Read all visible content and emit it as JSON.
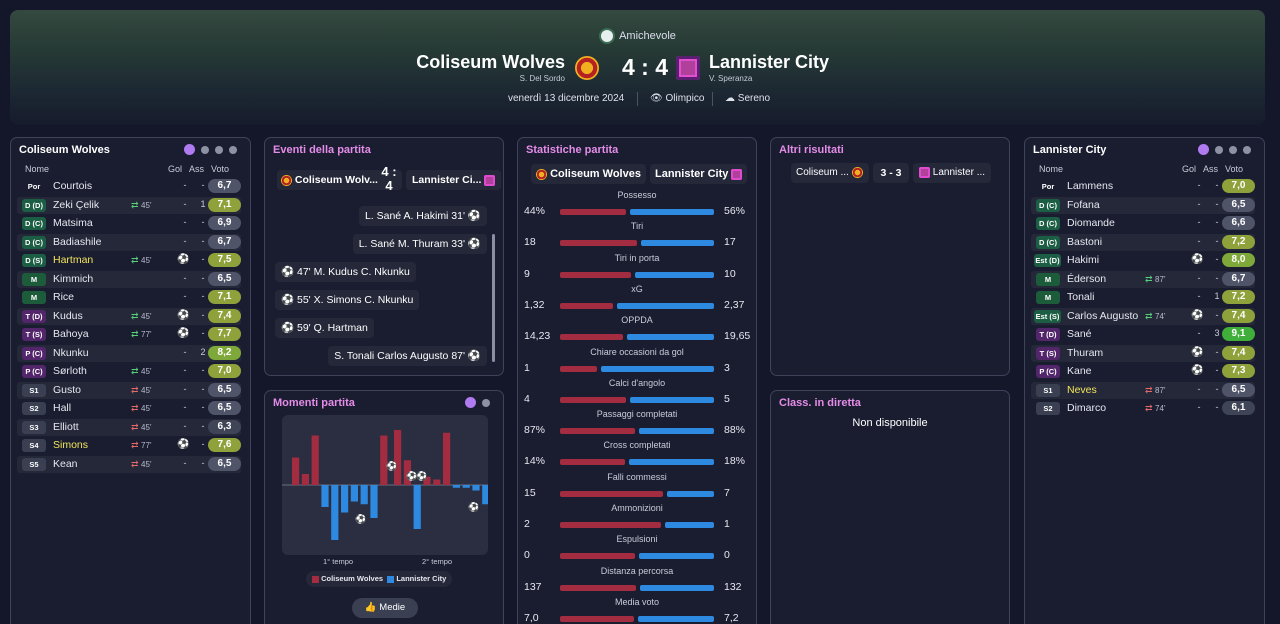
{
  "header": {
    "competition": "Amichevole",
    "home": {
      "name": "Coliseum Wolves",
      "coach": "S. Del Sordo"
    },
    "away": {
      "name": "Lannister City",
      "coach": "V. Speranza"
    },
    "score": "4 : 4",
    "date": "venerdì 13 dicembre 2024",
    "stadium": "Olimpico",
    "weather": "Sereno"
  },
  "colors": {
    "home": "#a32c40",
    "away": "#2e8ae0",
    "accent": "#e48ce8"
  },
  "squad_labels": {
    "name": "Nome",
    "goals": "Gol",
    "assists": "Ass",
    "rating": "Voto"
  },
  "home_squad": {
    "title": "Coliseum Wolves",
    "players": [
      {
        "pos": "Por",
        "name": "Courtois",
        "sub": "",
        "goals": "-",
        "assists": "-",
        "rating": "6,7",
        "hl": false
      },
      {
        "pos": "D (D)",
        "name": "Zeki Çelik",
        "sub": "45'",
        "dir": "in",
        "goals": "-",
        "assists": "1",
        "rating": "7,1",
        "hl": false
      },
      {
        "pos": "D (C)",
        "name": "Matsima",
        "sub": "",
        "goals": "-",
        "assists": "-",
        "rating": "6,9",
        "hl": false
      },
      {
        "pos": "D (C)",
        "name": "Badiashile",
        "sub": "",
        "goals": "-",
        "assists": "-",
        "rating": "6,7",
        "hl": false
      },
      {
        "pos": "D (S)",
        "name": "Hartman",
        "sub": "45'",
        "dir": "in",
        "gicon": "1",
        "goals": "-",
        "assists": "-",
        "rating": "7,5",
        "hl": true
      },
      {
        "pos": "M",
        "name": "Kimmich",
        "sub": "",
        "goals": "-",
        "assists": "-",
        "rating": "6,5",
        "hl": false
      },
      {
        "pos": "M",
        "name": "Rice",
        "sub": "",
        "goals": "-",
        "assists": "-",
        "rating": "7,1",
        "hl": false
      },
      {
        "pos": "T (D)",
        "name": "Kudus",
        "sub": "45'",
        "dir": "in",
        "gicon": "1",
        "goals": "-",
        "assists": "-",
        "rating": "7,4",
        "hl": false
      },
      {
        "pos": "T (S)",
        "name": "Bahoya",
        "sub": "77'",
        "dir": "in",
        "gicon": "1",
        "goals": "-",
        "assists": "-",
        "rating": "7,7",
        "hl": false
      },
      {
        "pos": "P (C)",
        "name": "Nkunku",
        "sub": "",
        "goals": "-",
        "assists": "2",
        "rating": "8,2",
        "hl": false
      },
      {
        "pos": "P (C)",
        "name": "Sørloth",
        "sub": "45'",
        "dir": "in",
        "goals": "-",
        "assists": "-",
        "rating": "7,0",
        "hl": false
      },
      {
        "pos": "S1",
        "name": "Gusto",
        "sub": "45'",
        "dir": "out",
        "goals": "-",
        "assists": "-",
        "rating": "6,5",
        "hl": false
      },
      {
        "pos": "S2",
        "name": "Hall",
        "sub": "45'",
        "dir": "out",
        "goals": "-",
        "assists": "-",
        "rating": "6,5",
        "hl": false
      },
      {
        "pos": "S3",
        "name": "Elliott",
        "sub": "45'",
        "dir": "out",
        "goals": "-",
        "assists": "-",
        "rating": "6,3",
        "hl": false
      },
      {
        "pos": "S4",
        "name": "Simons",
        "sub": "77'",
        "dir": "out",
        "gicon": "1",
        "goals": "-",
        "assists": "-",
        "rating": "7,6",
        "hl": true
      },
      {
        "pos": "S5",
        "name": "Kean",
        "sub": "45'",
        "dir": "out",
        "goals": "-",
        "assists": "-",
        "rating": "6,5",
        "hl": false
      }
    ]
  },
  "away_squad": {
    "title": "Lannister City",
    "players": [
      {
        "pos": "Por",
        "name": "Lammens",
        "sub": "",
        "goals": "-",
        "assists": "-",
        "rating": "7,0",
        "hl": false
      },
      {
        "pos": "D (C)",
        "name": "Fofana",
        "sub": "",
        "goals": "-",
        "assists": "-",
        "rating": "6,5",
        "hl": false
      },
      {
        "pos": "D (C)",
        "name": "Diomande",
        "sub": "",
        "goals": "-",
        "assists": "-",
        "rating": "6,6",
        "hl": false
      },
      {
        "pos": "D (C)",
        "name": "Bastoni",
        "sub": "",
        "goals": "-",
        "assists": "-",
        "rating": "7,2",
        "hl": false
      },
      {
        "pos": "Est (D)",
        "name": "Hakimi",
        "sub": "",
        "gicon": "1",
        "goals": "-",
        "assists": "-",
        "rating": "8,0",
        "hl": false
      },
      {
        "pos": "M",
        "name": "Éderson",
        "sub": "87'",
        "dir": "in",
        "goals": "-",
        "assists": "-",
        "rating": "6,7",
        "hl": false
      },
      {
        "pos": "M",
        "name": "Tonali",
        "sub": "",
        "goals": "-",
        "assists": "1",
        "rating": "7,2",
        "hl": false
      },
      {
        "pos": "Est (S)",
        "name": "Carlos Augusto",
        "sub": "74'",
        "dir": "in",
        "gicon": "1",
        "goals": "-",
        "assists": "-",
        "rating": "7,4",
        "hl": false
      },
      {
        "pos": "T (D)",
        "name": "Sané",
        "sub": "",
        "goals": "-",
        "assists": "3",
        "rating": "9,1",
        "hl": false
      },
      {
        "pos": "T (S)",
        "name": "Thuram",
        "sub": "",
        "gicon": "1",
        "goals": "-",
        "assists": "-",
        "rating": "7,4",
        "hl": false
      },
      {
        "pos": "P (C)",
        "name": "Kane",
        "sub": "",
        "gicon": "1",
        "goals": "-",
        "assists": "-",
        "rating": "7,3",
        "hl": false
      },
      {
        "pos": "S1",
        "name": "Neves",
        "sub": "87'",
        "dir": "out",
        "goals": "-",
        "assists": "-",
        "rating": "6,5",
        "hl": true
      },
      {
        "pos": "S2",
        "name": "Dimarco",
        "sub": "74'",
        "dir": "out",
        "goals": "-",
        "assists": "-",
        "rating": "6,1",
        "hl": false
      }
    ]
  },
  "events": {
    "title": "Eventi della partita",
    "home": "Coliseum Wolv...",
    "away": "Lannister Ci...",
    "score": "4 : 4",
    "items": [
      {
        "side": "away",
        "text": "L. Sané A. Hakimi 31'"
      },
      {
        "side": "away",
        "text": "L. Sané M. Thuram 33'"
      },
      {
        "side": "home",
        "text": "47' M. Kudus C. Nkunku"
      },
      {
        "side": "home",
        "text": "55' X. Simons C. Nkunku"
      },
      {
        "side": "home",
        "text": "59' Q. Hartman"
      },
      {
        "side": "away",
        "text": "S. Tonali Carlos Augusto 87'"
      }
    ]
  },
  "momentum": {
    "title": "Momenti partita",
    "first_half": "1° tempo",
    "second_half": "2° tempo",
    "legend_home": "Coliseum Wolves",
    "legend_away": "Lannister City",
    "button": "Medie",
    "values": [
      0.5,
      0.2,
      0.9,
      -0.4,
      -1.0,
      -0.5,
      -0.3,
      -0.35,
      -0.6,
      0.9,
      1.0,
      0.45,
      -0.8,
      0.15,
      0.1,
      0.95,
      -0.05,
      -0.05,
      -0.1,
      -0.35
    ]
  },
  "stats": {
    "title": "Statistiche partita",
    "home": "Coliseum Wolves",
    "away": "Lannister City",
    "rows": [
      {
        "label": "Possesso",
        "home": "44%",
        "away": "56%",
        "hv": 44,
        "av": 56
      },
      {
        "label": "Tiri",
        "home": "18",
        "away": "17",
        "hv": 18,
        "av": 17
      },
      {
        "label": "Tiri in porta",
        "home": "9",
        "away": "10",
        "hv": 9,
        "av": 10
      },
      {
        "label": "xG",
        "home": "1,32",
        "away": "2,37",
        "hv": 1.32,
        "av": 2.37
      },
      {
        "label": "OPPDA",
        "home": "14,23",
        "away": "19,65",
        "hv": 14.23,
        "av": 19.65
      },
      {
        "label": "Chiare occasioni da gol",
        "home": "1",
        "away": "3",
        "hv": 1,
        "av": 3
      },
      {
        "label": "Calci d'angolo",
        "home": "4",
        "away": "5",
        "hv": 4,
        "av": 5
      },
      {
        "label": "Passaggi completati",
        "home": "87%",
        "away": "88%",
        "hv": 87,
        "av": 88
      },
      {
        "label": "Cross completati",
        "home": "14%",
        "away": "18%",
        "hv": 14,
        "av": 18
      },
      {
        "label": "Falli commessi",
        "home": "15",
        "away": "7",
        "hv": 15,
        "av": 7
      },
      {
        "label": "Ammonizioni",
        "home": "2",
        "away": "1",
        "hv": 2,
        "av": 1
      },
      {
        "label": "Espulsioni",
        "home": "0",
        "away": "0",
        "hv": 0,
        "av": 0
      },
      {
        "label": "Distanza percorsa",
        "home": "137",
        "away": "132",
        "hv": 137,
        "av": 132
      },
      {
        "label": "Media voto",
        "home": "7,0",
        "away": "7,2",
        "hv": 7.0,
        "av": 7.2
      }
    ]
  },
  "other": {
    "title": "Altri risultati",
    "home": "Coliseum ...",
    "score": "3 - 3",
    "away": "Lannister ..."
  },
  "live_table": {
    "title": "Class. in diretta",
    "text": "Non disponibile"
  }
}
